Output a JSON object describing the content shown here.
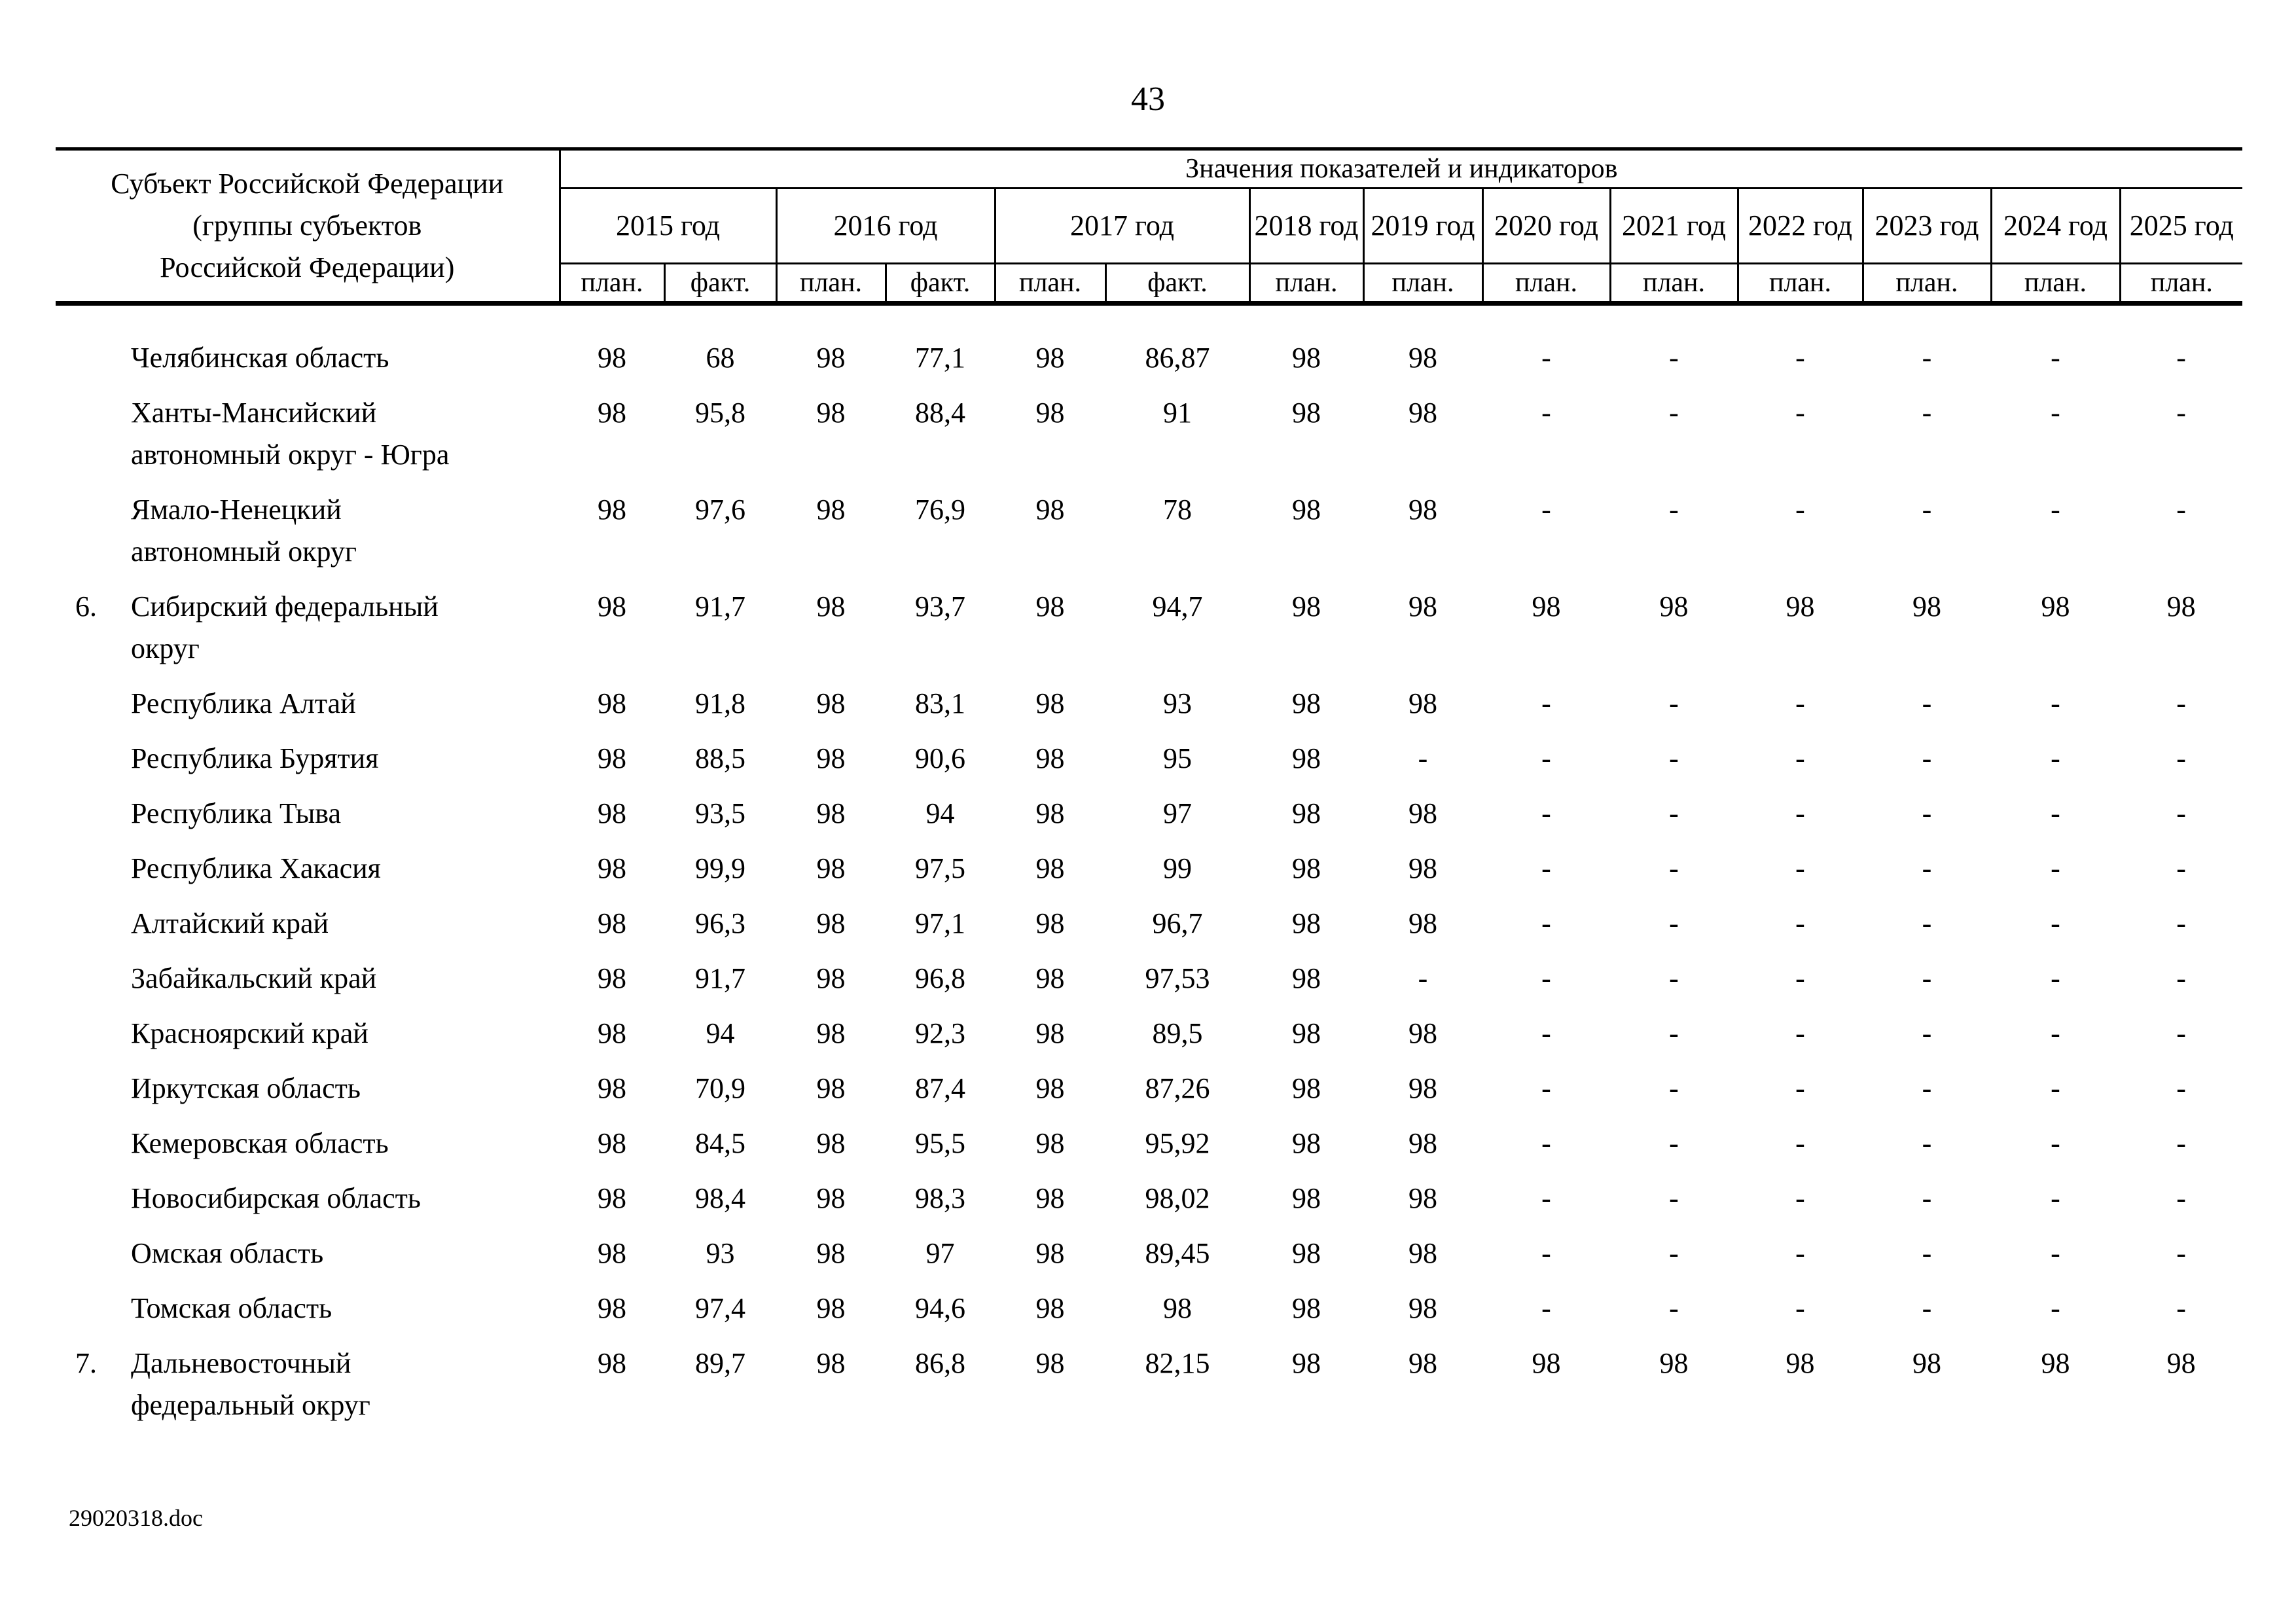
{
  "page": {
    "number": "43",
    "footer": "29020318.doc"
  },
  "table": {
    "subject_header": "Субъект Российской Федерации\n(группы субъектов\nРоссийской Федерации)",
    "values_header": "Значения показателей и индикаторов",
    "years": [
      {
        "label": "2015 год",
        "subs": [
          "план.",
          "факт."
        ]
      },
      {
        "label": "2016 год",
        "subs": [
          "план.",
          "факт."
        ]
      },
      {
        "label": "2017 год",
        "subs": [
          "план.",
          "факт."
        ]
      },
      {
        "label": "2018 год",
        "subs": [
          "план."
        ]
      },
      {
        "label": "2019 год",
        "subs": [
          "план."
        ]
      },
      {
        "label": "2020 год",
        "subs": [
          "план."
        ]
      },
      {
        "label": "2021 год",
        "subs": [
          "план."
        ]
      },
      {
        "label": "2022 год",
        "subs": [
          "план."
        ]
      },
      {
        "label": "2023 год",
        "subs": [
          "план."
        ]
      },
      {
        "label": "2024 год",
        "subs": [
          "план."
        ]
      },
      {
        "label": "2025 год",
        "subs": [
          "план."
        ]
      }
    ],
    "rows": [
      {
        "num": "",
        "name": "Челябинская область",
        "values": [
          "98",
          "68",
          "98",
          "77,1",
          "98",
          "86,87",
          "98",
          "98",
          "-",
          "-",
          "-",
          "-",
          "-",
          "-"
        ]
      },
      {
        "num": "",
        "name": "Ханты-Мансийский\nавтономный округ - Югра",
        "values": [
          "98",
          "95,8",
          "98",
          "88,4",
          "98",
          "91",
          "98",
          "98",
          "-",
          "-",
          "-",
          "-",
          "-",
          "-"
        ]
      },
      {
        "num": "",
        "name": "Ямало-Ненецкий\nавтономный округ",
        "values": [
          "98",
          "97,6",
          "98",
          "76,9",
          "98",
          "78",
          "98",
          "98",
          "-",
          "-",
          "-",
          "-",
          "-",
          "-"
        ]
      },
      {
        "num": "6.",
        "name": "Сибирский федеральный\nокруг",
        "values": [
          "98",
          "91,7",
          "98",
          "93,7",
          "98",
          "94,7",
          "98",
          "98",
          "98",
          "98",
          "98",
          "98",
          "98",
          "98"
        ]
      },
      {
        "num": "",
        "name": "Республика Алтай",
        "values": [
          "98",
          "91,8",
          "98",
          "83,1",
          "98",
          "93",
          "98",
          "98",
          "-",
          "-",
          "-",
          "-",
          "-",
          "-"
        ]
      },
      {
        "num": "",
        "name": "Республика Бурятия",
        "values": [
          "98",
          "88,5",
          "98",
          "90,6",
          "98",
          "95",
          "98",
          "-",
          "-",
          "-",
          "-",
          "-",
          "-",
          "-"
        ]
      },
      {
        "num": "",
        "name": "Республика Тыва",
        "values": [
          "98",
          "93,5",
          "98",
          "94",
          "98",
          "97",
          "98",
          "98",
          "-",
          "-",
          "-",
          "-",
          "-",
          "-"
        ]
      },
      {
        "num": "",
        "name": "Республика Хакасия",
        "values": [
          "98",
          "99,9",
          "98",
          "97,5",
          "98",
          "99",
          "98",
          "98",
          "-",
          "-",
          "-",
          "-",
          "-",
          "-"
        ]
      },
      {
        "num": "",
        "name": "Алтайский край",
        "values": [
          "98",
          "96,3",
          "98",
          "97,1",
          "98",
          "96,7",
          "98",
          "98",
          "-",
          "-",
          "-",
          "-",
          "-",
          "-"
        ]
      },
      {
        "num": "",
        "name": "Забайкальский край",
        "values": [
          "98",
          "91,7",
          "98",
          "96,8",
          "98",
          "97,53",
          "98",
          "-",
          "-",
          "-",
          "-",
          "-",
          "-",
          "-"
        ]
      },
      {
        "num": "",
        "name": "Красноярский край",
        "values": [
          "98",
          "94",
          "98",
          "92,3",
          "98",
          "89,5",
          "98",
          "98",
          "-",
          "-",
          "-",
          "-",
          "-",
          "-"
        ]
      },
      {
        "num": "",
        "name": "Иркутская область",
        "values": [
          "98",
          "70,9",
          "98",
          "87,4",
          "98",
          "87,26",
          "98",
          "98",
          "-",
          "-",
          "-",
          "-",
          "-",
          "-"
        ]
      },
      {
        "num": "",
        "name": "Кемеровская область",
        "values": [
          "98",
          "84,5",
          "98",
          "95,5",
          "98",
          "95,92",
          "98",
          "98",
          "-",
          "-",
          "-",
          "-",
          "-",
          "-"
        ]
      },
      {
        "num": "",
        "name": "Новосибирская область",
        "values": [
          "98",
          "98,4",
          "98",
          "98,3",
          "98",
          "98,02",
          "98",
          "98",
          "-",
          "-",
          "-",
          "-",
          "-",
          "-"
        ]
      },
      {
        "num": "",
        "name": "Омская область",
        "values": [
          "98",
          "93",
          "98",
          "97",
          "98",
          "89,45",
          "98",
          "98",
          "-",
          "-",
          "-",
          "-",
          "-",
          "-"
        ]
      },
      {
        "num": "",
        "name": "Томская область",
        "values": [
          "98",
          "97,4",
          "98",
          "94,6",
          "98",
          "98",
          "98",
          "98",
          "-",
          "-",
          "-",
          "-",
          "-",
          "-"
        ]
      },
      {
        "num": "7.",
        "name": "Дальневосточный\nфедеральный округ",
        "values": [
          "98",
          "89,7",
          "98",
          "86,8",
          "98",
          "82,15",
          "98",
          "98",
          "98",
          "98",
          "98",
          "98",
          "98",
          "98"
        ]
      }
    ]
  }
}
